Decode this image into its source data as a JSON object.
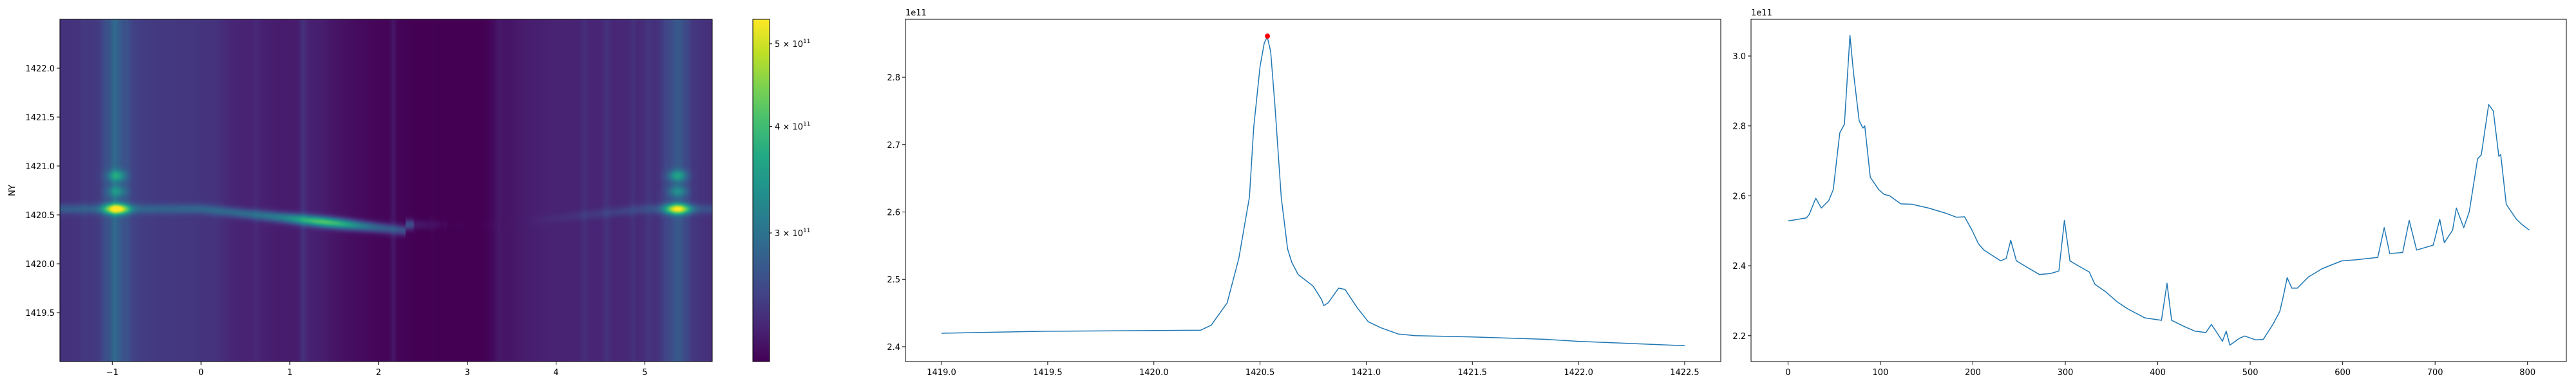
{
  "colors": {
    "line": "#1f77b4",
    "peak_marker": "#ff0000",
    "colormap": "viridis"
  },
  "chart_data": [
    {
      "type": "heatmap",
      "title": "",
      "xlabel": "",
      "ylabel": "NY",
      "xlim": [
        -1.59,
        5.76
      ],
      "ylim": [
        1419.0,
        1422.5
      ],
      "x_ticks": [
        -1,
        0,
        1,
        2,
        3,
        4,
        5
      ],
      "x_tick_labels": [
        "−1",
        "0",
        "1",
        "2",
        "3",
        "4",
        "5"
      ],
      "y_ticks": [
        1419.5,
        1420.0,
        1420.5,
        1421.0,
        1421.5,
        1422.0
      ],
      "y_tick_labels": [
        "1419.5",
        "1420.0",
        "1420.5",
        "1421.0",
        "1421.5",
        "1422.0"
      ],
      "colorbar": {
        "scale": "log",
        "vmin": 212000000000.0,
        "vmax": 534000000000.0,
        "ticks": [
          500000000000.0,
          400000000000.0,
          300000000000.0
        ],
        "tick_labels": [
          {
            "base": "5 × 10",
            "exp": "11"
          },
          {
            "base": "4 × 10",
            "exp": "11"
          },
          {
            "base": "3 × 10",
            "exp": "11"
          }
        ]
      },
      "features": {
        "emission_line_center_y": 1420.55,
        "bright_spots_x": [
          -0.95,
          5.35
        ],
        "darkest_column_x": 3.0
      }
    },
    {
      "type": "line",
      "title": "",
      "xlabel": "",
      "ylabel": "",
      "y_offset_label": "1e11",
      "xlim": [
        1418.83,
        1422.67
      ],
      "ylim": [
        2.378,
        2.886
      ],
      "x_ticks": [
        1419.0,
        1419.5,
        1420.0,
        1420.5,
        1421.0,
        1421.5,
        1422.0,
        1422.5
      ],
      "x_tick_labels": [
        "1419.0",
        "1419.5",
        "1420.0",
        "1420.5",
        "1421.0",
        "1421.5",
        "1422.0",
        "1422.5"
      ],
      "y_ticks": [
        2.4,
        2.5,
        2.6,
        2.7,
        2.8
      ],
      "y_tick_labels": [
        "2.4",
        "2.5",
        "2.6",
        "2.7",
        "2.8"
      ],
      "x": [
        1419.0,
        1419.49,
        1420.22,
        1420.27,
        1420.32,
        1420.345,
        1420.4,
        1420.45,
        1420.47,
        1420.5,
        1420.52,
        1420.534,
        1420.55,
        1420.57,
        1420.6,
        1420.63,
        1420.65,
        1420.68,
        1420.75,
        1420.79,
        1420.8,
        1420.82,
        1420.87,
        1420.9,
        1420.96,
        1421.01,
        1421.07,
        1421.15,
        1421.23,
        1421.5,
        1421.84,
        1422.0,
        1422.5
      ],
      "y": [
        2.42,
        2.423,
        2.4245,
        2.432,
        2.454,
        2.465,
        2.531,
        2.622,
        2.725,
        2.816,
        2.851,
        2.86,
        2.838,
        2.758,
        2.622,
        2.545,
        2.525,
        2.507,
        2.49,
        2.47,
        2.461,
        2.465,
        2.487,
        2.485,
        2.457,
        2.437,
        2.428,
        2.419,
        2.4165,
        2.4146,
        2.411,
        2.408,
        2.4015
      ],
      "peak_marker": {
        "x": 1420.535,
        "y": 2.861
      }
    },
    {
      "type": "line",
      "title": "",
      "xlabel": "",
      "ylabel": "",
      "y_offset_label": "1e11",
      "xlim": [
        -40,
        842
      ],
      "ylim": [
        2.126,
        3.105
      ],
      "x_ticks": [
        0,
        100,
        200,
        300,
        400,
        500,
        600,
        700,
        800
      ],
      "x_tick_labels": [
        "0",
        "100",
        "200",
        "300",
        "400",
        "500",
        "600",
        "700",
        "800"
      ],
      "y_ticks": [
        2.2,
        2.4,
        2.6,
        2.8,
        3.0
      ],
      "y_tick_labels": [
        "2.2",
        "2.4",
        "2.6",
        "2.8",
        "3.0"
      ],
      "x": [
        0,
        20,
        23,
        30,
        36,
        44,
        49,
        56,
        61,
        67,
        71,
        77,
        81,
        83,
        89,
        98,
        104,
        110,
        122,
        134,
        152,
        170,
        182,
        191,
        199,
        206,
        212,
        230,
        236,
        241,
        247,
        254,
        272,
        284,
        293,
        299,
        305,
        314,
        326,
        332,
        344,
        356,
        368,
        386,
        404,
        410,
        415,
        428,
        440,
        452,
        458,
        464,
        470,
        474,
        478,
        488,
        494,
        506,
        514,
        524,
        532,
        536,
        540,
        545,
        551,
        563,
        578,
        599,
        614,
        638,
        645,
        651,
        665,
        672,
        680,
        698,
        705,
        710,
        719,
        723,
        731,
        737,
        746,
        750,
        758,
        763,
        769,
        771,
        777,
        788,
        794,
        802
      ],
      "y": [
        2.528,
        2.537,
        2.547,
        2.593,
        2.565,
        2.586,
        2.618,
        2.78,
        2.805,
        3.059,
        2.949,
        2.815,
        2.794,
        2.8,
        2.653,
        2.618,
        2.604,
        2.6,
        2.577,
        2.576,
        2.565,
        2.551,
        2.539,
        2.54,
        2.502,
        2.463,
        2.445,
        2.414,
        2.421,
        2.473,
        2.414,
        2.403,
        2.375,
        2.378,
        2.385,
        2.53,
        2.414,
        2.4,
        2.382,
        2.347,
        2.325,
        2.297,
        2.276,
        2.251,
        2.244,
        2.35,
        2.244,
        2.227,
        2.213,
        2.209,
        2.232,
        2.209,
        2.184,
        2.213,
        2.173,
        2.192,
        2.199,
        2.188,
        2.189,
        2.23,
        2.269,
        2.315,
        2.366,
        2.336,
        2.336,
        2.368,
        2.392,
        2.414,
        2.417,
        2.424,
        2.509,
        2.435,
        2.438,
        2.53,
        2.445,
        2.459,
        2.533,
        2.466,
        2.502,
        2.565,
        2.509,
        2.555,
        2.706,
        2.717,
        2.861,
        2.843,
        2.713,
        2.718,
        2.576,
        2.533,
        2.518,
        2.502
      ]
    }
  ]
}
